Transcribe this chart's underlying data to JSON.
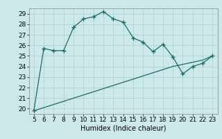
{
  "xlabel": "Humidex (Indice chaleur)",
  "x_values": [
    5,
    6,
    7,
    8,
    9,
    10,
    11,
    12,
    13,
    14,
    15,
    16,
    17,
    18,
    19,
    20,
    21,
    22,
    23
  ],
  "y_curve": [
    19.8,
    25.7,
    25.5,
    25.5,
    27.7,
    28.5,
    28.7,
    29.2,
    28.5,
    28.2,
    26.7,
    26.3,
    25.4,
    26.1,
    24.9,
    23.3,
    24.0,
    24.3,
    25.0
  ],
  "y_line": [
    19.8,
    20.1,
    20.4,
    20.7,
    21.0,
    21.3,
    21.6,
    21.9,
    22.2,
    22.5,
    22.8,
    23.1,
    23.4,
    23.7,
    24.0,
    24.2,
    24.4,
    24.6,
    25.0
  ],
  "ylim": [
    19.5,
    29.5
  ],
  "yticks": [
    20,
    21,
    22,
    23,
    24,
    25,
    26,
    27,
    28,
    29
  ],
  "bg_color": "#cce8e8",
  "grid_color": "#aad4d4",
  "line_color": "#1a6b6b",
  "label_fontsize": 7,
  "tick_fontsize": 6.5
}
